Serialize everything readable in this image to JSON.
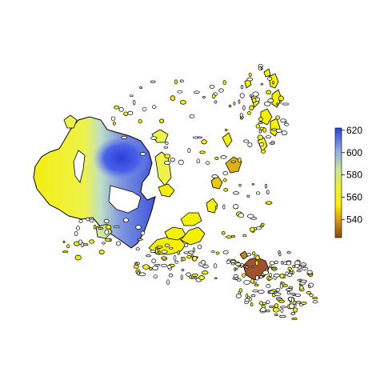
{
  "legend": {
    "ticks": [
      "620",
      "600",
      "580",
      "560",
      "540"
    ],
    "tick_values": [
      620,
      600,
      580,
      560,
      540
    ],
    "range": [
      524,
      622
    ],
    "colors": [
      "#8b4513",
      "#c8860b",
      "#ffee00",
      "#e8f040",
      "#c8e89a",
      "#8fa8e8",
      "#2a3fd8"
    ]
  },
  "colors": {
    "outline": "#000000",
    "yellow": "#f5f000",
    "lightyellow": "#eef24a",
    "greenish": "#cfe8a0",
    "blue": "#4a63e8",
    "darkblue": "#2b3fd9",
    "brown": "#a0522d",
    "background": "#ffffff"
  }
}
